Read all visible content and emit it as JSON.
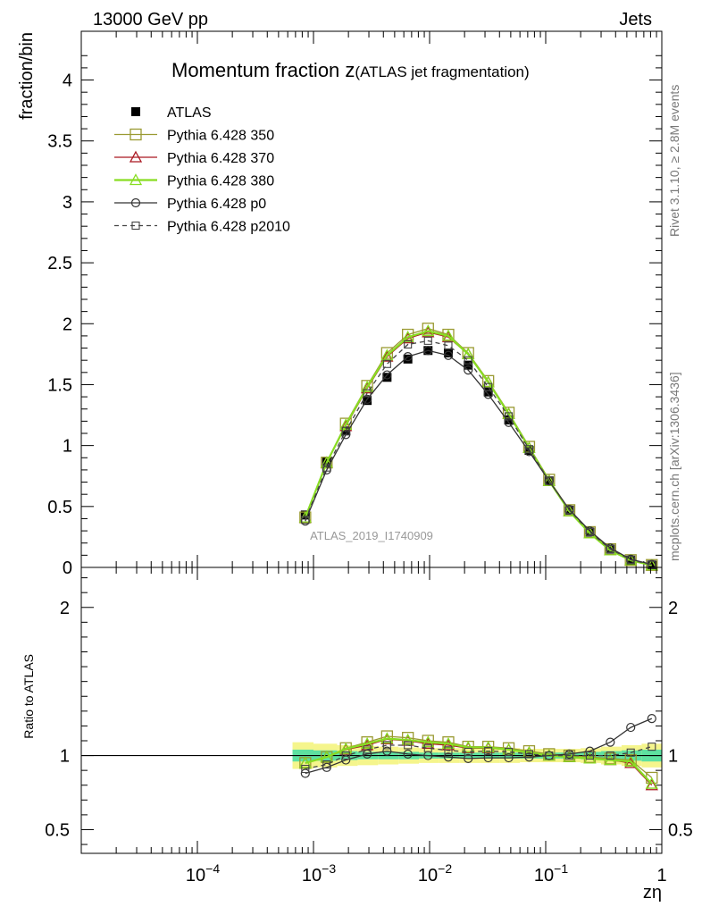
{
  "header": {
    "left": "13000 GeV pp",
    "right": "Jets",
    "side_top": "Rivet 3.1.10, ≥ 2.8M events",
    "side_bottom": "mcplots.cern.ch [arXiv:1306.3436]"
  },
  "watermark": "ATLAS_2019_I1740909",
  "chart_data": [
    {
      "type": "line",
      "title": "Momentum fraction z",
      "subtitle": "(ATLAS jet fragmentation)",
      "ylabel": "fraction/bin",
      "xscale": "log",
      "xlim": [
        1e-05,
        1
      ],
      "ylim": [
        0,
        4.4
      ],
      "yticks": [
        "0",
        "0.5",
        "1",
        "1.5",
        "2",
        "2.5",
        "3",
        "3.5",
        "4"
      ],
      "xticks": [
        "10^-4",
        "10^-3",
        "10^-2",
        "10^-1",
        "1"
      ],
      "legend_position": "top-left",
      "x": [
        0.00085,
        0.0013,
        0.0019,
        0.0029,
        0.0043,
        0.0065,
        0.0097,
        0.0145,
        0.0215,
        0.032,
        0.048,
        0.072,
        0.107,
        0.16,
        0.24,
        0.36,
        0.54,
        0.82
      ],
      "series": [
        {
          "name": "ATLAS",
          "color": "#000000",
          "marker": "filled-square",
          "line": "none",
          "values": [
            0.43,
            0.87,
            1.12,
            1.37,
            1.56,
            1.71,
            1.78,
            1.76,
            1.66,
            1.44,
            1.21,
            0.96,
            0.71,
            0.47,
            0.29,
            0.15,
            0.06,
            0.02
          ]
        },
        {
          "name": "Pythia 6.428 350",
          "color": "#9a9a32",
          "marker": "open-square",
          "line": "solid",
          "values": [
            0.41,
            0.86,
            1.18,
            1.49,
            1.76,
            1.91,
            1.96,
            1.91,
            1.76,
            1.53,
            1.27,
            0.99,
            0.72,
            0.47,
            0.29,
            0.15,
            0.06,
            0.02
          ]
        },
        {
          "name": "Pythia 6.428 370",
          "color": "#aa1822",
          "marker": "open-triangle",
          "line": "solid",
          "values": [
            0.41,
            0.86,
            1.16,
            1.47,
            1.73,
            1.88,
            1.93,
            1.89,
            1.75,
            1.52,
            1.26,
            0.98,
            0.71,
            0.46,
            0.28,
            0.14,
            0.057,
            0.016
          ]
        },
        {
          "name": "Pythia 6.428 380",
          "color": "#88dd22",
          "marker": "open-triangle",
          "line": "solid",
          "values": [
            0.41,
            0.86,
            1.17,
            1.48,
            1.74,
            1.89,
            1.94,
            1.9,
            1.75,
            1.52,
            1.26,
            0.98,
            0.71,
            0.46,
            0.28,
            0.14,
            0.058,
            0.017
          ]
        },
        {
          "name": "Pythia 6.428 p0",
          "color": "#333333",
          "marker": "open-circle",
          "line": "solid",
          "values": [
            0.38,
            0.8,
            1.09,
            1.38,
            1.58,
            1.73,
            1.78,
            1.74,
            1.62,
            1.42,
            1.19,
            0.95,
            0.71,
            0.475,
            0.3,
            0.16,
            0.067,
            0.025
          ]
        },
        {
          "name": "Pythia 6.428 p2010",
          "color": "#444444",
          "marker": "open-square-small",
          "line": "dashed",
          "values": [
            0.39,
            0.82,
            1.12,
            1.43,
            1.67,
            1.83,
            1.86,
            1.82,
            1.7,
            1.48,
            1.24,
            0.97,
            0.71,
            0.47,
            0.29,
            0.15,
            0.062,
            0.021
          ]
        }
      ]
    },
    {
      "type": "line",
      "ylabel": "Ratio to ATLAS",
      "xlabel": "zη",
      "xscale": "log",
      "xlim": [
        1e-05,
        1
      ],
      "ylim": [
        0.34,
        2.27
      ],
      "yticks": [
        "0.5",
        "1",
        "2"
      ],
      "band_colors": {
        "stat": "#5ee0a0",
        "total": "#f5f58c"
      },
      "band_x": [
        0.00066,
        0.001,
        0.0016,
        0.0024,
        0.0036,
        0.0054,
        0.0081,
        0.012,
        0.018,
        0.027,
        0.04,
        0.06,
        0.09,
        0.135,
        0.2,
        0.3,
        0.45,
        0.67,
        1.0
      ],
      "band_total_low": [
        0.91,
        0.92,
        0.93,
        0.935,
        0.94,
        0.945,
        0.95,
        0.95,
        0.95,
        0.95,
        0.95,
        0.955,
        0.955,
        0.955,
        0.95,
        0.94,
        0.93,
        0.92
      ],
      "band_total_high": [
        1.09,
        1.08,
        1.07,
        1.065,
        1.06,
        1.055,
        1.05,
        1.05,
        1.05,
        1.05,
        1.05,
        1.045,
        1.045,
        1.045,
        1.05,
        1.06,
        1.07,
        1.08
      ],
      "band_stat_low": [
        0.96,
        0.965,
        0.97,
        0.975,
        0.975,
        0.975,
        0.98,
        0.98,
        0.98,
        0.98,
        0.98,
        0.98,
        0.98,
        0.98,
        0.975,
        0.97,
        0.965,
        0.96
      ],
      "band_stat_high": [
        1.04,
        1.035,
        1.03,
        1.025,
        1.025,
        1.025,
        1.02,
        1.02,
        1.02,
        1.02,
        1.02,
        1.02,
        1.02,
        1.02,
        1.025,
        1.03,
        1.035,
        1.04
      ],
      "x": [
        0.00085,
        0.0013,
        0.0019,
        0.0029,
        0.0043,
        0.0065,
        0.0097,
        0.0145,
        0.0215,
        0.032,
        0.048,
        0.072,
        0.107,
        0.16,
        0.24,
        0.36,
        0.54,
        0.82
      ],
      "series": [
        {
          "name": "Pythia 6.428 350",
          "color": "#9a9a32",
          "marker": "open-square",
          "line": "solid",
          "values": [
            0.95,
            0.99,
            1.05,
            1.09,
            1.13,
            1.12,
            1.1,
            1.09,
            1.06,
            1.06,
            1.05,
            1.03,
            1.01,
            1.0,
            0.99,
            0.98,
            0.97,
            0.85
          ]
        },
        {
          "name": "Pythia 6.428 370",
          "color": "#aa1822",
          "marker": "open-triangle",
          "line": "solid",
          "values": [
            0.95,
            0.99,
            1.04,
            1.07,
            1.11,
            1.1,
            1.08,
            1.07,
            1.05,
            1.05,
            1.04,
            1.02,
            1.0,
            0.99,
            0.98,
            0.97,
            0.95,
            0.8
          ]
        },
        {
          "name": "Pythia 6.428 380",
          "color": "#88dd22",
          "marker": "open-triangle",
          "line": "solid",
          "values": [
            0.95,
            0.99,
            1.045,
            1.08,
            1.115,
            1.105,
            1.09,
            1.08,
            1.055,
            1.055,
            1.04,
            1.02,
            1.0,
            0.99,
            0.98,
            0.97,
            0.96,
            0.81
          ]
        },
        {
          "name": "Pythia 6.428 p0",
          "color": "#333333",
          "marker": "open-circle",
          "line": "solid",
          "values": [
            0.88,
            0.92,
            0.97,
            1.01,
            1.03,
            1.01,
            1.0,
            0.99,
            0.98,
            0.985,
            0.985,
            0.99,
            1.0,
            1.01,
            1.03,
            1.09,
            1.19,
            1.25
          ]
        },
        {
          "name": "Pythia 6.428 p2010",
          "color": "#444444",
          "marker": "open-square-small",
          "line": "dashed",
          "values": [
            0.91,
            0.94,
            1.0,
            1.04,
            1.07,
            1.07,
            1.05,
            1.035,
            1.025,
            1.03,
            1.025,
            1.01,
            1.0,
            1.0,
            1.0,
            1.0,
            1.02,
            1.06
          ]
        }
      ]
    }
  ]
}
